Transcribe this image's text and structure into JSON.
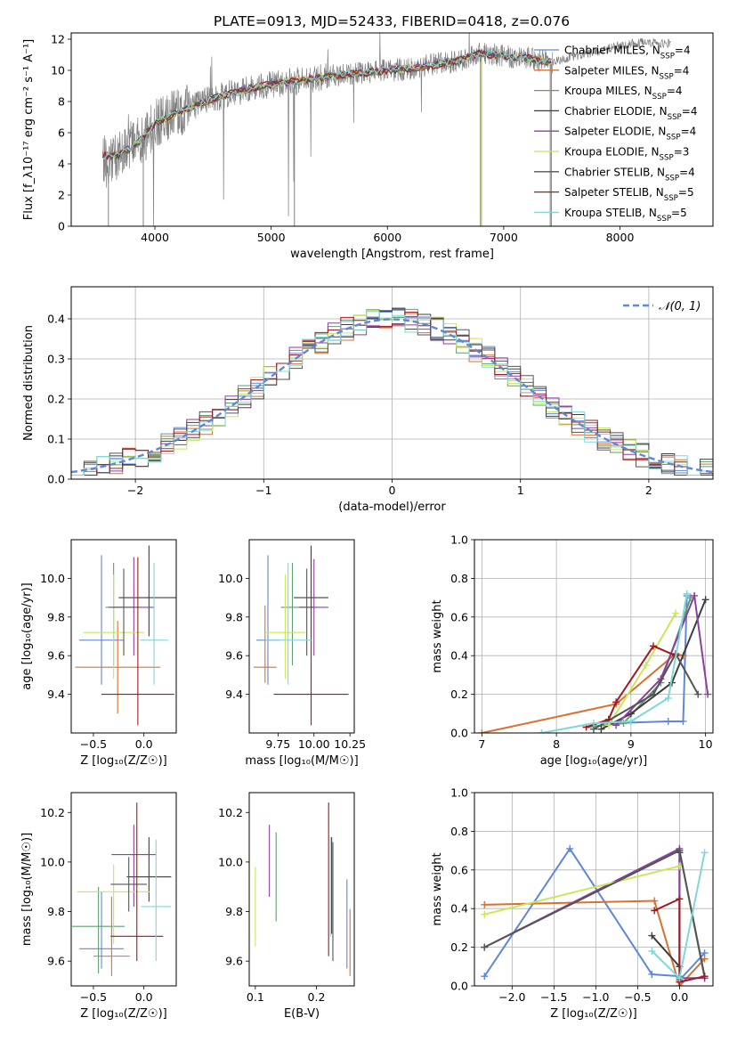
{
  "page": {
    "title": "PLATE=0913, MJD=52433, FIBERID=0418, z=0.076"
  },
  "series_colors": [
    "#5f87d8",
    "#d97030",
    "#5f9e6e",
    "#3e3e3e",
    "#8e3ea2",
    "#c8e85a",
    "#555555",
    "#a01a20",
    "#7fd8d8"
  ],
  "chart_data": [
    {
      "id": "spectrum",
      "type": "line",
      "title": "PLATE=0913, MJD=52433, FIBERID=0418, z=0.076",
      "xlabel": "wavelength [Angstrom, rest frame]",
      "ylabel": "Flux [f_λ10⁻¹⁷ erg cm⁻² s⁻¹ A⁻¹]",
      "xlim": [
        3280,
        8800
      ],
      "ylim": [
        0,
        12.4
      ],
      "xticks": [
        "4000",
        "5000",
        "6000",
        "7000",
        "8000"
      ],
      "yticks": [
        "0",
        "2",
        "4",
        "6",
        "8",
        "10",
        "12"
      ],
      "legend_position": "right",
      "legend": [
        "Chabrier MILES, N_SSP=4",
        "Salpeter MILES, N_SSP=4",
        "Kroupa MILES, N_SSP=4",
        "Chabrier ELODIE, N_SSP=4",
        "Salpeter ELODIE, N_SSP=4",
        "Kroupa ELODIE, N_SSP=3",
        "Chabrier STELIB, N_SSP=4",
        "Salpeter STELIB, N_SSP=5",
        "Kroupa STELIB, N_SSP=5"
      ],
      "data_series": {
        "name": "data",
        "color": "#808080",
        "x": [
          3550,
          3600,
          3700,
          3800,
          3900,
          4000,
          4100,
          4200,
          4300,
          4400,
          4500,
          4600,
          4700,
          4800,
          4900,
          5000,
          5200,
          5400,
          5600,
          5800,
          6000,
          6200,
          6400,
          6600,
          6800,
          7000,
          7200,
          7400,
          7600,
          7800,
          8000,
          8200,
          8400
        ],
        "y": [
          4.5,
          3.8,
          4.7,
          5.2,
          5.6,
          6.6,
          7.0,
          7.3,
          7.6,
          7.9,
          8.2,
          8.4,
          8.6,
          8.8,
          9.0,
          9.1,
          9.3,
          9.5,
          9.7,
          9.8,
          10.0,
          10.1,
          10.4,
          10.6,
          11.1,
          10.9,
          10.8,
          10.5,
          10.9,
          11.2,
          11.6,
          11.8,
          11.7
        ]
      },
      "model": {
        "x": [
          3550,
          3700,
          3850,
          4000,
          4200,
          4400,
          4600,
          4800,
          5000,
          5300,
          5600,
          6000,
          6300,
          6600,
          6800,
          7000,
          7200,
          7400
        ],
        "y": [
          4.5,
          4.6,
          5.3,
          6.6,
          7.3,
          7.9,
          8.4,
          8.8,
          9.1,
          9.4,
          9.7,
          10.0,
          10.2,
          10.6,
          11.1,
          10.9,
          10.8,
          10.5
        ]
      }
    },
    {
      "id": "residuals",
      "type": "histogram",
      "xlabel": "(data-model)/error",
      "ylabel": "Normed distribution",
      "xlim": [
        -2.5,
        2.5
      ],
      "ylim": [
        0,
        0.48
      ],
      "xticks": [
        "−2",
        "−1",
        "0",
        "1",
        "2"
      ],
      "yticks": [
        "0.0",
        "0.1",
        "0.2",
        "0.3",
        "0.4"
      ],
      "legend": [
        "𝒩(0, 1)"
      ],
      "legend_position": "upper right",
      "bin_width": 0.1,
      "reference": {
        "name": "𝒩(0, 1)",
        "mean": 0,
        "sigma": 1
      }
    },
    {
      "id": "age-vs-Z",
      "type": "scatter",
      "xlabel": "Z [log₁₀(Z/Z☉)]",
      "ylabel": "age  [log₁₀(age/yr)]",
      "xlim": [
        -0.72,
        0.32
      ],
      "ylim": [
        9.2,
        10.2
      ],
      "xticks": [
        "−0.5",
        "0.0"
      ],
      "yticks": [
        "9.4",
        "9.6",
        "9.8",
        "10.0"
      ],
      "points": [
        {
          "x": -0.42,
          "y": 9.68,
          "xerr": 0.22,
          "ylo": 9.45,
          "yhi": 10.12
        },
        {
          "x": -0.26,
          "y": 9.54,
          "xerr": 0.42,
          "ylo": 9.3,
          "yhi": 9.78
        },
        {
          "x": -0.3,
          "y": 9.85,
          "xerr": 0.08,
          "ylo": 9.55,
          "yhi": 10.08
        },
        {
          "x": 0.05,
          "y": 9.9,
          "xerr": 0.3,
          "ylo": 9.7,
          "yhi": 10.17
        },
        {
          "x": -0.1,
          "y": 9.85,
          "xerr": 0.2,
          "ylo": 9.6,
          "yhi": 10.11
        },
        {
          "x": -0.3,
          "y": 9.72,
          "xerr": 0.3,
          "ylo": 9.48,
          "yhi": 10.02
        },
        {
          "x": -0.2,
          "y": 9.85,
          "xerr": 0.15,
          "ylo": 9.6,
          "yhi": 10.05
        },
        {
          "x": -0.06,
          "y": 9.4,
          "xerr": 0.36,
          "ylo": 9.24,
          "yhi": 10.11
        },
        {
          "x": 0.1,
          "y": 9.68,
          "xerr": 0.14,
          "ylo": 9.45,
          "yhi": 10.08
        }
      ]
    },
    {
      "id": "age-vs-mass",
      "type": "scatter",
      "xlabel": "mass [log₁₀(M/M☉)]",
      "ylabel": "",
      "xlim": [
        9.55,
        10.28
      ],
      "ylim": [
        9.2,
        10.2
      ],
      "xticks": [
        "9.75",
        "10.00",
        "10.25"
      ],
      "yticks": [
        "9.4",
        "9.6",
        "9.8",
        "10.0"
      ],
      "points": [
        {
          "x": 9.68,
          "y": 9.68,
          "xerr": 0.08,
          "ylo": 9.45,
          "yhi": 10.12
        },
        {
          "x": 9.66,
          "y": 9.54,
          "xerr": 0.08,
          "ylo": 9.46,
          "yhi": 9.86
        },
        {
          "x": 9.85,
          "y": 9.85,
          "xerr": 0.08,
          "ylo": 9.55,
          "yhi": 10.08
        },
        {
          "x": 9.98,
          "y": 9.9,
          "xerr": 0.12,
          "ylo": 9.7,
          "yhi": 10.17
        },
        {
          "x": 10.0,
          "y": 9.85,
          "xerr": 0.1,
          "ylo": 9.6,
          "yhi": 10.1
        },
        {
          "x": 9.8,
          "y": 9.72,
          "xerr": 0.14,
          "ylo": 9.48,
          "yhi": 10.02
        },
        {
          "x": 9.95,
          "y": 9.85,
          "xerr": 0.05,
          "ylo": 9.6,
          "yhi": 10.05
        },
        {
          "x": 9.98,
          "y": 9.4,
          "xerr": 0.26,
          "ylo": 9.24,
          "yhi": 10.1
        },
        {
          "x": 9.82,
          "y": 9.68,
          "xerr": 0.16,
          "ylo": 9.45,
          "yhi": 10.08
        }
      ]
    },
    {
      "id": "weight-vs-age",
      "type": "line",
      "xlabel": "age  [log₁₀(age/yr)]",
      "ylabel": "mass weight",
      "xlim": [
        6.9,
        10.1
      ],
      "ylim": [
        0,
        1.0
      ],
      "xticks": [
        "7",
        "8",
        "9",
        "10"
      ],
      "yticks": [
        "0.0",
        "0.2",
        "0.4",
        "0.6",
        "0.8",
        "1.0"
      ],
      "series": [
        {
          "x": [
            8.7,
            9.5,
            9.7,
            9.75
          ],
          "y": [
            0.05,
            0.06,
            0.06,
            0.71
          ]
        },
        {
          "x": [
            7.0,
            8.8,
            9.6,
            9.7
          ],
          "y": [
            0.0,
            0.15,
            0.41,
            0.4
          ]
        },
        {
          "x": [
            8.4,
            8.9,
            9.4,
            9.8
          ],
          "y": [
            0.03,
            0.05,
            0.26,
            0.7
          ]
        },
        {
          "x": [
            8.6,
            9.0,
            9.55,
            10.0
          ],
          "y": [
            0.02,
            0.1,
            0.26,
            0.69
          ]
        },
        {
          "x": [
            8.8,
            9.4,
            9.85,
            10.03
          ],
          "y": [
            0.04,
            0.28,
            0.71,
            0.2
          ]
        },
        {
          "x": [
            8.7,
            9.2,
            9.6
          ],
          "y": [
            0.04,
            0.35,
            0.62
          ]
        },
        {
          "x": [
            8.5,
            9.3,
            9.6,
            9.9
          ],
          "y": [
            0.02,
            0.2,
            0.41,
            0.2
          ]
        },
        {
          "x": [
            8.4,
            8.7,
            8.8,
            9.3,
            9.6
          ],
          "y": [
            0.03,
            0.07,
            0.16,
            0.45,
            0.4
          ]
        },
        {
          "x": [
            7.8,
            8.5,
            9.0,
            9.5,
            9.75
          ],
          "y": [
            0.0,
            0.05,
            0.06,
            0.18,
            0.72
          ]
        }
      ]
    },
    {
      "id": "mass-vs-Z",
      "type": "scatter",
      "xlabel": "Z [log₁₀(Z/Z☉)]",
      "ylabel": "mass [log₁₀(M/M☉)]",
      "xlim": [
        -0.72,
        0.32
      ],
      "ylim": [
        9.5,
        10.28
      ],
      "xticks": [
        "−0.5",
        "0.0"
      ],
      "yticks": [
        "9.6",
        "9.8",
        "10.0",
        "10.2"
      ],
      "points": [
        {
          "x": -0.42,
          "y": 9.65,
          "xerr": 0.22,
          "ylo": 9.57,
          "yhi": 9.88
        },
        {
          "x": -0.32,
          "y": 9.62,
          "xerr": 0.18,
          "ylo": 9.54,
          "yhi": 9.86
        },
        {
          "x": -0.45,
          "y": 9.74,
          "xerr": 0.26,
          "ylo": 9.55,
          "yhi": 9.9
        },
        {
          "x": 0.05,
          "y": 9.94,
          "xerr": 0.22,
          "ylo": 9.84,
          "yhi": 10.1
        },
        {
          "x": -0.1,
          "y": 10.03,
          "xerr": 0.22,
          "ylo": 9.82,
          "yhi": 10.15
        },
        {
          "x": -0.3,
          "y": 9.88,
          "xerr": 0.36,
          "ylo": 9.67,
          "yhi": 9.99
        },
        {
          "x": -0.15,
          "y": 9.91,
          "xerr": 0.18,
          "ylo": 9.8,
          "yhi": 10.02
        },
        {
          "x": -0.07,
          "y": 9.7,
          "xerr": 0.26,
          "ylo": 9.6,
          "yhi": 10.24
        },
        {
          "x": 0.12,
          "y": 9.82,
          "xerr": 0.15,
          "ylo": 9.6,
          "yhi": 10.09
        }
      ]
    },
    {
      "id": "mass-vs-EBV",
      "type": "scatter",
      "xlabel": "E(B-V)",
      "ylabel": "",
      "xlim": [
        0.09,
        0.262
      ],
      "ylim": [
        9.5,
        10.28
      ],
      "xticks": [
        "0.1",
        "0.2"
      ],
      "yticks": [
        "9.6",
        "9.8",
        "10.0",
        "10.2"
      ],
      "points": [
        {
          "x": 0.25,
          "y": 9.75,
          "ylo": 9.57,
          "yhi": 9.93
        },
        {
          "x": 0.255,
          "y": 9.68,
          "ylo": 9.54,
          "yhi": 9.81
        },
        {
          "x": 0.134,
          "y": 9.94,
          "ylo": 9.76,
          "yhi": 10.12
        },
        {
          "x": 0.225,
          "y": 9.91,
          "ylo": 9.71,
          "yhi": 10.1
        },
        {
          "x": 0.123,
          "y": 10.0,
          "ylo": 9.86,
          "yhi": 10.15
        },
        {
          "x": 0.1,
          "y": 9.82,
          "ylo": 9.66,
          "yhi": 9.98
        },
        {
          "x": 0.227,
          "y": 9.87,
          "ylo": 9.6,
          "yhi": 10.08
        },
        {
          "x": 0.22,
          "y": 9.95,
          "ylo": 9.62,
          "yhi": 10.24
        },
        {
          "x": 0.223,
          "y": 9.92,
          "ylo": 9.7,
          "yhi": 10.1
        }
      ]
    },
    {
      "id": "weight-vs-Z",
      "type": "line",
      "xlabel": "Z [log₁₀(Z/Z☉)]",
      "ylabel": "mass weight",
      "xlim": [
        -2.45,
        0.4
      ],
      "ylim": [
        0,
        1.0
      ],
      "xticks": [
        "−2.0",
        "−1.5",
        "−1.0",
        "−0.5",
        "0.0"
      ],
      "yticks": [
        "0.0",
        "0.2",
        "0.4",
        "0.6",
        "0.8",
        "1.0"
      ],
      "series": [
        {
          "x": [
            -2.33,
            -1.31,
            -0.33,
            0.0,
            0.0,
            0.3
          ],
          "y": [
            0.05,
            0.71,
            0.06,
            0.05,
            0.03,
            0.17
          ]
        },
        {
          "x": [
            -2.33,
            -0.3,
            0.0,
            0.3
          ],
          "y": [
            0.42,
            0.44,
            0.0,
            0.14
          ]
        },
        {
          "x": [
            0.0,
            0.0,
            0.3
          ],
          "y": [
            0.05,
            0.7,
            0.04
          ]
        },
        {
          "x": [
            -0.33,
            0.0,
            0.0
          ],
          "y": [
            0.26,
            0.1,
            0.69
          ]
        },
        {
          "x": [
            -2.33,
            0.0,
            0.0,
            0.3
          ],
          "y": [
            0.2,
            0.71,
            0.04,
            0.04
          ]
        },
        {
          "x": [
            -2.33,
            0.0
          ],
          "y": [
            0.37,
            0.62
          ]
        },
        {
          "x": [
            -2.33,
            0.0,
            0.3
          ],
          "y": [
            0.2,
            0.7,
            0.05
          ]
        },
        {
          "x": [
            -0.3,
            0.0,
            0.0,
            0.3
          ],
          "y": [
            0.39,
            0.45,
            0.02,
            0.05
          ]
        },
        {
          "x": [
            -0.33,
            0.0,
            0.3
          ],
          "y": [
            0.18,
            0.04,
            0.69
          ]
        }
      ]
    }
  ]
}
